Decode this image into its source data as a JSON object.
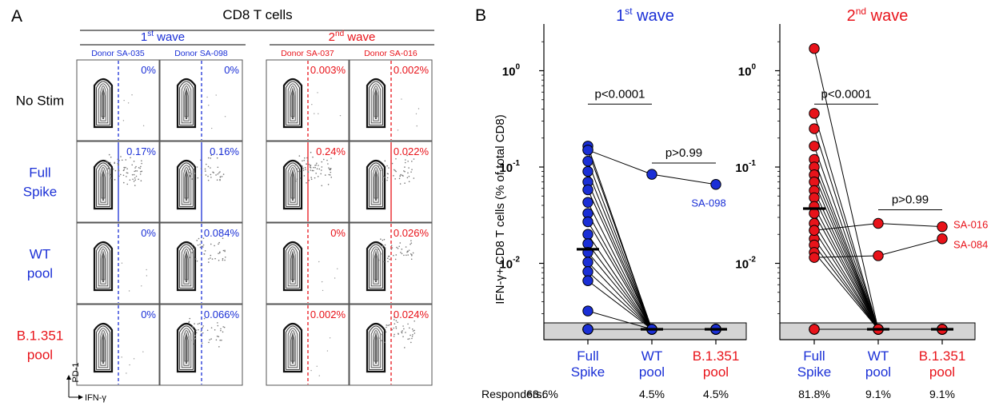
{
  "panel_a": {
    "letter": "A",
    "title": "CD8 T cells",
    "waves": [
      {
        "label": "1st wave",
        "base": "1",
        "sup": "st",
        "rest": " wave",
        "color": "#1a2fd6",
        "donors": [
          "Donor SA-035",
          "Donor SA-098"
        ]
      },
      {
        "label": "2nd wave",
        "base": "2",
        "sup": "nd",
        "rest": " wave",
        "color": "#e8131a",
        "donors": [
          "Donor SA-037",
          "Donor SA-016"
        ]
      }
    ],
    "rows": [
      {
        "label": [
          "No Stim"
        ],
        "color": "#000000",
        "pct": [
          "0%",
          "0%",
          "0.003%",
          "0.002%"
        ],
        "solid": false
      },
      {
        "label": [
          "Full",
          "Spike"
        ],
        "color": "#1a2fd6",
        "pct": [
          "0.17%",
          "0.16%",
          "0.24%",
          "0.022%"
        ],
        "solid": true
      },
      {
        "label": [
          "WT",
          "pool"
        ],
        "color": "#1a2fd6",
        "pct": [
          "0%",
          "0.084%",
          "0%",
          "0.026%"
        ],
        "solid": false
      },
      {
        "label": [
          "B.1.351",
          "pool"
        ],
        "color": "#e8131a",
        "pct": [
          "0%",
          "0.066%",
          "0.002%",
          "0.024%"
        ],
        "solid": false
      }
    ],
    "dotted_cells": [
      [
        false,
        false,
        false,
        false
      ],
      [
        false,
        true,
        false,
        true
      ],
      [
        false,
        true,
        false,
        true
      ],
      [
        false,
        true,
        false,
        true
      ]
    ],
    "y_axis_label": "PD-1",
    "x_axis_label": "IFN-γ"
  },
  "panel_b": {
    "letter": "B",
    "y_axis_label": "IFN-γ+ CD8 T cells (% of total CD8)",
    "responders_label": "Responders:",
    "colors": {
      "blue": "#1a2fd6",
      "red": "#e8131a",
      "gray_band": "#d4d4d4"
    }
  },
  "chart_data": [
    {
      "type": "scatter",
      "title": "1st wave",
      "title_base": "1",
      "title_sup": "st",
      "title_rest": " wave",
      "color": "#1a2fd6",
      "y_scale": "log",
      "ylim": [
        0.0003,
        2
      ],
      "y_ticks": [
        {
          "base": "10",
          "exp": "0",
          "value": 1
        },
        {
          "base": "10",
          "exp": "-1",
          "value": 0.1
        },
        {
          "base": "10",
          "exp": "-2",
          "value": 0.01
        }
      ],
      "categories": [
        {
          "lines": [
            "Full",
            "Spike"
          ],
          "color": "#1a2fd6"
        },
        {
          "lines": [
            "WT",
            "pool"
          ],
          "color": "#1a2fd6"
        },
        {
          "lines": [
            "B.1.351",
            "pool"
          ],
          "color": "#e8131a"
        }
      ],
      "responders": [
        "63.6%",
        "4.5%",
        "4.5%"
      ],
      "median_full_spike": 0.014,
      "pairs": [
        [
          0.165,
          null,
          null
        ],
        [
          0.15,
          null,
          null
        ],
        [
          0.115,
          null,
          null
        ],
        [
          0.09,
          null,
          null
        ],
        [
          0.07,
          null,
          null
        ],
        [
          0.058,
          null,
          null
        ],
        [
          0.043,
          null,
          null
        ],
        [
          0.033,
          null,
          null
        ],
        [
          0.027,
          null,
          null
        ],
        [
          0.02,
          null,
          null
        ],
        [
          0.016,
          null,
          null
        ],
        [
          0.013,
          null,
          null
        ],
        [
          0.0103,
          null,
          null
        ],
        [
          0.0082,
          null,
          null
        ],
        [
          0.0066,
          null,
          null
        ],
        [
          0.0032,
          null,
          null
        ],
        [
          0.15,
          0.084,
          0.066
        ],
        [
          null,
          null,
          null
        ],
        [
          null,
          null,
          null
        ],
        [
          null,
          null,
          null
        ],
        [
          null,
          null,
          null
        ],
        [
          null,
          null,
          null
        ]
      ],
      "pvalues": [
        {
          "text": "p<0.0001",
          "from": 0,
          "to": 1,
          "y": 0.45
        },
        {
          "text": "p>0.99",
          "from": 1,
          "to": 2,
          "y": 0.11
        }
      ],
      "annotations": [
        {
          "text": "SA-098",
          "x": 2,
          "y": 0.066
        }
      ]
    },
    {
      "type": "scatter",
      "title": "2nd wave",
      "title_base": "2",
      "title_sup": "nd",
      "title_rest": " wave",
      "color": "#e8131a",
      "y_scale": "log",
      "ylim": [
        0.0003,
        2
      ],
      "y_ticks": [
        {
          "base": "10",
          "exp": "0",
          "value": 1
        },
        {
          "base": "10",
          "exp": "-1",
          "value": 0.1
        },
        {
          "base": "10",
          "exp": "-2",
          "value": 0.01
        }
      ],
      "categories": [
        {
          "lines": [
            "Full",
            "Spike"
          ],
          "color": "#1a2fd6"
        },
        {
          "lines": [
            "WT",
            "pool"
          ],
          "color": "#1a2fd6"
        },
        {
          "lines": [
            "B.1.351",
            "pool"
          ],
          "color": "#e8131a"
        }
      ],
      "responders": [
        "81.8%",
        "9.1%",
        "9.1%"
      ],
      "median_full_spike": 0.037,
      "pairs": [
        [
          1.7,
          null,
          null
        ],
        [
          0.36,
          null,
          null
        ],
        [
          0.25,
          null,
          null
        ],
        [
          0.165,
          null,
          null
        ],
        [
          0.12,
          null,
          null
        ],
        [
          0.1,
          null,
          null
        ],
        [
          0.083,
          null,
          null
        ],
        [
          0.07,
          null,
          null
        ],
        [
          0.057,
          null,
          null
        ],
        [
          0.048,
          null,
          null
        ],
        [
          0.039,
          null,
          null
        ],
        [
          0.033,
          null,
          null
        ],
        [
          0.026,
          null,
          null
        ],
        [
          0.022,
          null,
          null
        ],
        [
          0.018,
          null,
          null
        ],
        [
          0.0155,
          null,
          null
        ],
        [
          0.013,
          null,
          null
        ],
        [
          0.022,
          0.026,
          0.024
        ],
        [
          0.0115,
          0.012,
          0.018
        ],
        [
          null,
          null,
          null
        ],
        [
          null,
          null,
          null
        ],
        [
          null,
          null,
          null
        ]
      ],
      "pvalues": [
        {
          "text": "p<0.0001",
          "from": 0,
          "to": 1,
          "y": 0.45
        },
        {
          "text": "p>0.99",
          "from": 1,
          "to": 2,
          "y": 0.036
        }
      ],
      "annotations": [
        {
          "text": "SA-016",
          "x": 2,
          "y": 0.024
        },
        {
          "text": "SA-084",
          "x": 2,
          "y": 0.018
        }
      ]
    }
  ]
}
